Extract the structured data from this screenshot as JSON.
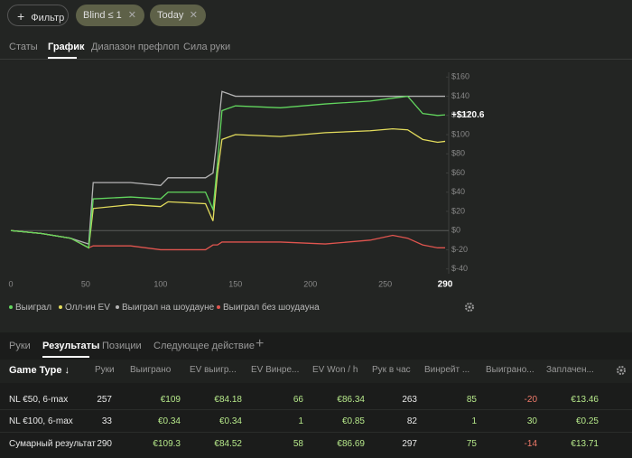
{
  "toolbar": {
    "filter_button": "Фильтр",
    "chips": [
      "Blind ≤ 1",
      "Today"
    ]
  },
  "tabs": {
    "items": [
      "Статы",
      "График",
      "Диапазон префлоп",
      "Сила руки"
    ],
    "active": 1
  },
  "chart_data": {
    "type": "line",
    "x": [
      0,
      20,
      40,
      52,
      55,
      80,
      100,
      105,
      130,
      135,
      138,
      141,
      150,
      180,
      210,
      240,
      255,
      265,
      275,
      285,
      290
    ],
    "series": [
      {
        "name": "Выиграл",
        "color": "#62d65e",
        "values": [
          0,
          -3,
          -8,
          -18,
          33,
          35,
          33,
          40,
          40,
          22,
          70,
          125,
          130,
          128,
          132,
          135,
          138,
          140,
          122,
          120,
          120.6
        ]
      },
      {
        "name": "Олл-ин EV",
        "color": "#e3dc5c",
        "values": [
          0,
          -3,
          -8,
          -18,
          23,
          27,
          25,
          30,
          28,
          10,
          60,
          95,
          100,
          98,
          102,
          104,
          106,
          105,
          95,
          92,
          93
        ]
      },
      {
        "name": "Выиграл на шоудауне",
        "color": "#b4b4b4",
        "values": [
          0,
          -3,
          -8,
          -14,
          50,
          50,
          47,
          55,
          55,
          60,
          100,
          145,
          140,
          140,
          140,
          140,
          140,
          140,
          140,
          140,
          140
        ]
      },
      {
        "name": "Выиграл без шоудауна",
        "color": "#e0554f",
        "values": [
          0,
          -3,
          -8,
          -18,
          -16,
          -16,
          -20,
          -20,
          -20,
          -15,
          -15,
          -12,
          -12,
          -12,
          -14,
          -10,
          -5,
          -8,
          -15,
          -18,
          -18
        ]
      }
    ],
    "end_label": "+$120.6",
    "xlim": [
      0,
      290
    ],
    "xticks": [
      0,
      50,
      100,
      150,
      200,
      250,
      290
    ],
    "ylim": [
      -45,
      165
    ],
    "yticks": [
      {
        "value": 160,
        "label": "$160"
      },
      {
        "value": 140,
        "label": "$140"
      },
      {
        "value": 120,
        "label": "$120"
      },
      {
        "value": 100,
        "label": "$100"
      },
      {
        "value": 80,
        "label": "$80"
      },
      {
        "value": 60,
        "label": "$60"
      },
      {
        "value": 40,
        "label": "$40"
      },
      {
        "value": 20,
        "label": "$20"
      },
      {
        "value": 0,
        "label": "$0"
      },
      {
        "value": -20,
        "label": "$-20"
      },
      {
        "value": -40,
        "label": "$-40"
      }
    ]
  },
  "bottom_tabs": {
    "items": [
      "Руки",
      "Результаты",
      "Позиции",
      "Следующее действие"
    ],
    "active": 1
  },
  "table": {
    "headers": [
      "Game Type ↓",
      "Руки",
      "Выиграно",
      "EV выигр...",
      "EV Винре...",
      "EV Won / h",
      "Рук в час",
      "Винрейт ...",
      "Выиграно...",
      "Заплачен..."
    ],
    "rows": [
      {
        "cells": [
          "NL €50, 6-max",
          "257",
          "€109",
          "€84.18",
          "66",
          "€86.34",
          "263",
          "85",
          "-20",
          "€13.46"
        ]
      },
      {
        "cells": [
          "NL €100, 6-max",
          "33",
          "€0.34",
          "€0.34",
          "1",
          "€0.85",
          "82",
          "1",
          "30",
          "€0.25"
        ]
      },
      {
        "cells": [
          "Сумарный результат",
          "290",
          "€109.3",
          "€84.52",
          "58",
          "€86.69",
          "297",
          "75",
          "-14",
          "€13.71"
        ]
      }
    ]
  }
}
